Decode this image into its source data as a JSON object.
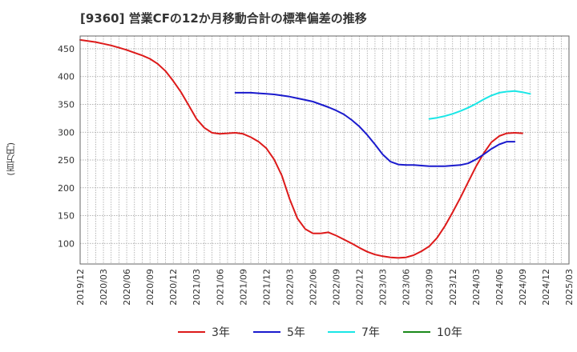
{
  "title": "[9360]  営業CFの12か月移動合計の標準偏差の推移",
  "chart_data": {
    "type": "line",
    "title": "[9360]  営業CFの12か月移動合計の標準偏差の推移",
    "ylabel": "(百万円)",
    "xlabel": "",
    "ylim": [
      63,
      473
    ],
    "yticks": [
      100,
      150,
      200,
      250,
      300,
      350,
      400,
      450
    ],
    "x_tick_labels": [
      "2019/12",
      "2020/03",
      "2020/06",
      "2020/09",
      "2020/12",
      "2021/03",
      "2021/06",
      "2021/09",
      "2021/12",
      "2022/03",
      "2022/06",
      "2022/09",
      "2022/12",
      "2023/03",
      "2023/06",
      "2023/09",
      "2023/12",
      "2024/03",
      "2024/06",
      "2024/09",
      "2024/12",
      "2025/03"
    ],
    "grid": true,
    "legend_position": "bottom",
    "series": [
      {
        "name": "3年",
        "color": "#dd1a1a",
        "start_index": 0,
        "values": [
          466,
          464,
          462,
          459,
          456,
          452,
          448,
          443,
          438,
          432,
          423,
          410,
          392,
          372,
          348,
          324,
          308,
          299,
          297,
          298,
          299,
          297,
          291,
          283,
          271,
          251,
          222,
          180,
          145,
          126,
          118,
          118,
          120,
          114,
          107,
          100,
          92,
          85,
          80,
          77,
          75,
          74,
          75,
          79,
          86,
          95,
          110,
          131,
          156,
          182,
          210,
          238,
          262,
          282,
          293,
          298,
          299,
          298
        ]
      },
      {
        "name": "5年",
        "color": "#1a1acd",
        "start_index": 20,
        "values": [
          371,
          371,
          371,
          370,
          369,
          368,
          366,
          364,
          361,
          358,
          355,
          350,
          345,
          339,
          332,
          322,
          310,
          295,
          278,
          260,
          247,
          242,
          241,
          241,
          240,
          239,
          239,
          239,
          240,
          241,
          244,
          251,
          260,
          270,
          278,
          283,
          283
        ]
      },
      {
        "name": "7年",
        "color": "#1ae6e6",
        "start_index": 45,
        "values": [
          324,
          326,
          329,
          333,
          338,
          344,
          351,
          359,
          366,
          371,
          373,
          374,
          372,
          369
        ]
      },
      {
        "name": "10年",
        "color": "#1a8a1a",
        "start_index": 0,
        "values": []
      }
    ]
  }
}
